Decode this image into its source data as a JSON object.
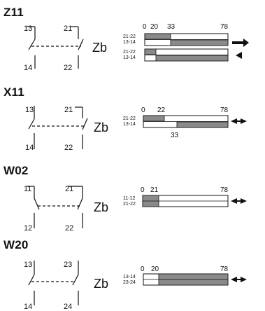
{
  "sections": [
    {
      "code": "Z11",
      "terminals": [
        "13",
        "21",
        "14",
        "22"
      ],
      "zb": "Zb",
      "ticks": [
        "0",
        "20",
        "33",
        "78"
      ],
      "bars": [
        {
          "row_labels": [
            "21-22",
            "13-14"
          ],
          "top_shaded_range": [
            0,
            20
          ],
          "bottom_shaded_range": [
            20,
            78
          ],
          "arrow": "right"
        },
        {
          "row_labels": [
            "21-22",
            "13-14"
          ],
          "top_shaded_range": [
            0,
            9
          ],
          "bottom_shaded_range": [
            9,
            78
          ],
          "arrow": "left"
        }
      ]
    },
    {
      "code": "X11",
      "terminals": [
        "13",
        "21",
        "14",
        "22"
      ],
      "zb": "Zb",
      "ticks_top": [
        "0",
        "22",
        "78"
      ],
      "tick_bottom": "33",
      "bars": [
        {
          "row_labels": [
            "21-22",
            "13-14"
          ],
          "top_shaded_range": [
            0,
            22
          ],
          "bottom_shaded_range": [
            33,
            78
          ],
          "arrow": "both"
        }
      ]
    },
    {
      "code": "W02",
      "terminals": [
        "11",
        "21",
        "12",
        "22"
      ],
      "zb": "Zb",
      "ticks": [
        "0",
        "21",
        "78"
      ],
      "bars": [
        {
          "row_labels": [
            "11-12",
            "21-22"
          ],
          "top_shaded_range": [
            0,
            21
          ],
          "bottom_shaded_range": [
            0,
            21
          ],
          "arrow": "both"
        }
      ]
    },
    {
      "code": "W20",
      "terminals": [
        "13",
        "23",
        "14",
        "24"
      ],
      "zb": "Zb",
      "ticks": [
        "0",
        "20",
        "78"
      ],
      "bars": [
        {
          "row_labels": [
            "13-14",
            "23-24"
          ],
          "top_shaded_range": [
            20,
            78
          ],
          "bottom_shaded_range": [
            20,
            78
          ],
          "arrow": "both"
        }
      ]
    }
  ],
  "colors": {
    "shade": "#8a8a8a",
    "line": "#111111",
    "background": "#ffffff"
  }
}
